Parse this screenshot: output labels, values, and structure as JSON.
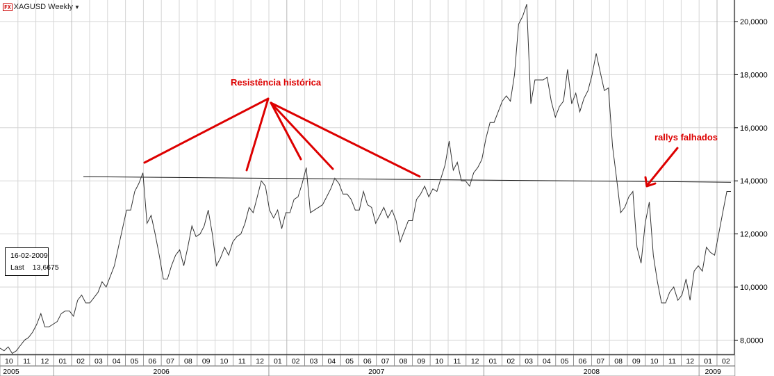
{
  "header": {
    "fx_badge": "FX",
    "symbol_title": "XAGUSD Weekly"
  },
  "info_box": {
    "date": "16-02-2009",
    "last_label": "Last",
    "last_value": "13,6675"
  },
  "annotations": {
    "resistance_label": "Resistência histórica",
    "rallies_label": "rallys falhados"
  },
  "colors": {
    "price_line": "#333333",
    "annotation": "#dd0000",
    "resistance_line": "#111111",
    "grid": "#d6d6d6"
  },
  "chart_data": {
    "type": "line",
    "ylim": [
      7.5,
      20.75
    ],
    "y_ticks": [
      {
        "value": 8,
        "label": "8,0000"
      },
      {
        "value": 10,
        "label": "10,0000"
      },
      {
        "value": 12,
        "label": "12,0000"
      },
      {
        "value": 14,
        "label": "14,0000"
      },
      {
        "value": 16,
        "label": "16,0000"
      },
      {
        "value": 18,
        "label": "18,0000"
      },
      {
        "value": 20,
        "label": "20,0000"
      }
    ],
    "months": [
      "10",
      "11",
      "12",
      "01",
      "02",
      "03",
      "04",
      "05",
      "06",
      "07",
      "08",
      "09",
      "10",
      "11",
      "12",
      "01",
      "02",
      "03",
      "04",
      "05",
      "06",
      "07",
      "08",
      "09",
      "10",
      "11",
      "12",
      "01",
      "02",
      "03",
      "04",
      "05",
      "06",
      "07",
      "08",
      "09",
      "10",
      "11",
      "12",
      "01",
      "02"
    ],
    "years": [
      "2005",
      "2006",
      "2007",
      "2008",
      "2009"
    ],
    "series": [
      {
        "values": [
          7.7,
          7.6,
          7.75,
          7.5,
          7.6,
          7.8,
          8,
          8.1,
          8.3,
          8.6,
          9,
          8.5,
          8.5,
          8.6,
          8.7,
          9,
          9.1,
          9.1,
          8.9,
          9.5,
          9.7,
          9.4,
          9.4,
          9.6,
          9.8,
          10.2,
          10,
          10.4,
          10.8,
          11.5,
          12.2,
          12.9,
          12.9,
          13.6,
          13.9,
          14.3,
          12.4,
          12.7,
          12,
          11.2,
          10.3,
          10.3,
          10.8,
          11.2,
          11.4,
          10.8,
          11.5,
          12.3,
          11.9,
          12,
          12.3,
          12.9,
          12,
          10.8,
          11.1,
          11.5,
          11.2,
          11.7,
          11.9,
          12,
          12.4,
          13,
          12.8,
          13.4,
          14,
          13.8,
          12.9,
          12.6,
          12.9,
          12.2,
          12.8,
          12.8,
          13.3,
          13.4,
          13.9,
          14.5,
          12.8,
          12.9,
          13,
          13.1,
          13.4,
          13.7,
          14.1,
          13.9,
          13.5,
          13.5,
          13.3,
          12.9,
          12.9,
          13.6,
          13.1,
          13,
          12.4,
          12.7,
          13,
          12.6,
          12.9,
          12.5,
          11.7,
          12.1,
          12.5,
          12.5,
          13.3,
          13.5,
          13.8,
          13.4,
          13.7,
          13.6,
          14.1,
          14.6,
          15.5,
          14.4,
          14.7,
          14,
          14,
          13.8,
          14.3,
          14.5,
          14.8,
          15.6,
          16.2,
          16.2,
          16.6,
          17,
          17.2,
          17,
          18,
          19.9,
          20.2,
          20.65,
          16.9,
          17.8,
          17.8,
          17.8,
          17.9,
          17,
          16.4,
          16.8,
          17,
          18.2,
          16.9,
          17.3,
          16.6,
          17.1,
          17.4,
          18,
          18.8,
          18.1,
          17.4,
          17.5,
          15.3,
          14.1,
          12.8,
          13,
          13.4,
          13.6,
          11.5,
          10.9,
          12.4,
          13.2,
          11.2,
          10.2,
          9.4,
          9.4,
          9.8,
          10,
          9.5,
          9.7,
          10.3,
          9.5,
          10.6,
          10.8,
          10.6,
          11.5,
          11.3,
          11.2,
          12,
          12.8,
          13.6,
          13.6
        ]
      }
    ],
    "resistance_level": 14.0
  }
}
